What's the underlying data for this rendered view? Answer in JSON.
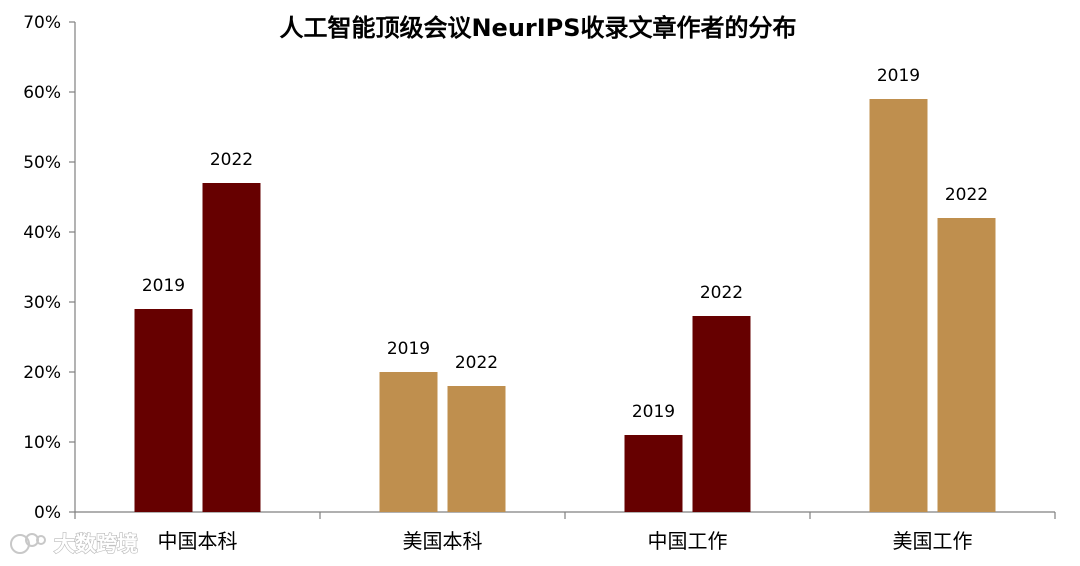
{
  "chart_data": {
    "type": "bar",
    "title": "人工智能顶级会议NeurIPS收录文章作者的分布",
    "categories": [
      "中国本科",
      "美国本科",
      "中国工作",
      "美国工作"
    ],
    "series": [
      {
        "values": [
          0.29,
          0.2,
          0.11,
          0.59
        ],
        "labels": [
          "2019",
          "2019",
          "2019",
          "2019"
        ]
      },
      {
        "values": [
          0.47,
          0.18,
          0.28,
          0.42
        ],
        "labels": [
          "2022",
          "2022",
          "2022",
          "2022"
        ]
      }
    ],
    "bar_colors": [
      "#660000",
      "#BF8F4E",
      "#660000",
      "#BF8F4E"
    ],
    "ylim": [
      0,
      0.7
    ],
    "yticks": [
      0,
      0.1,
      0.2,
      0.3,
      0.4,
      0.5,
      0.6,
      0.7
    ],
    "ytick_labels": [
      "0%",
      "10%",
      "20%",
      "30%",
      "40%",
      "50%",
      "60%",
      "70%"
    ],
    "xlabel": "",
    "ylabel": "",
    "grid": false,
    "legend": "none"
  },
  "watermark": {
    "text": "大数跨境",
    "icon": "logo-icon"
  }
}
